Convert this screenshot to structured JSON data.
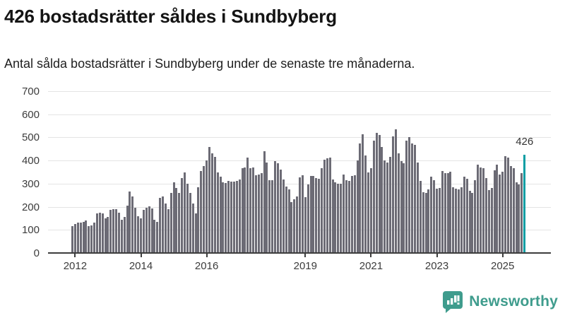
{
  "header": {
    "title": "426 bostadsrätter såldes i Sundbyberg",
    "subtitle": "Antal sålda bostadsrätter i Sundbyberg under de senaste tre månaderna."
  },
  "footer": {
    "brand": "Newsworthy"
  },
  "colors": {
    "bar": "#6c6b75",
    "highlight": "#089ea4",
    "grid": "#e4e4e4",
    "axis": "#3d3d3d",
    "logo": "#3f9c8d"
  },
  "chart_data": {
    "type": "bar",
    "title": "426 bostadsrätter såldes i Sundbyberg",
    "subtitle": "Antal sålda bostadsrätter i Sundbyberg under de senaste tre månaderna.",
    "ylabel": "",
    "xlabel": "",
    "ylim": [
      0,
      700
    ],
    "y_ticks": [
      0,
      100,
      200,
      300,
      400,
      500,
      600,
      700
    ],
    "grid": true,
    "legend": "none",
    "x_period": {
      "start": "2011-12",
      "end": "2025-09",
      "step": "month"
    },
    "x_ticks": [
      {
        "label": "2012",
        "index": 1
      },
      {
        "label": "2014",
        "index": 25
      },
      {
        "label": "2016",
        "index": 49
      },
      {
        "label": "2019",
        "index": 85
      },
      {
        "label": "2021",
        "index": 109
      },
      {
        "label": "2023",
        "index": 133
      },
      {
        "label": "2025",
        "index": 157
      }
    ],
    "values": [
      115,
      125,
      130,
      130,
      135,
      140,
      115,
      120,
      130,
      170,
      175,
      170,
      150,
      155,
      185,
      190,
      190,
      175,
      145,
      155,
      205,
      265,
      245,
      195,
      160,
      150,
      187,
      195,
      203,
      193,
      145,
      135,
      238,
      245,
      215,
      190,
      260,
      305,
      280,
      260,
      325,
      350,
      300,
      260,
      215,
      170,
      283,
      355,
      375,
      400,
      460,
      430,
      415,
      350,
      330,
      305,
      302,
      312,
      309,
      310,
      312,
      318,
      366,
      369,
      414,
      366,
      371,
      335,
      340,
      346,
      439,
      391,
      315,
      315,
      396,
      389,
      361,
      318,
      287,
      274,
      220,
      233,
      244,
      328,
      335,
      240,
      298,
      332,
      332,
      325,
      322,
      366,
      404,
      410,
      414,
      318,
      305,
      300,
      301,
      340,
      315,
      313,
      333,
      335,
      399,
      473,
      514,
      422,
      349,
      366,
      485,
      519,
      512,
      458,
      400,
      391,
      417,
      503,
      534,
      432,
      396,
      388,
      485,
      500,
      473,
      468,
      391,
      312,
      264,
      259,
      274,
      330,
      315,
      279,
      280,
      356,
      346,
      345,
      353,
      284,
      279,
      274,
      284,
      330,
      320,
      269,
      259,
      315,
      381,
      371,
      366,
      325,
      271,
      281,
      359,
      381,
      338,
      351,
      419,
      412,
      376,
      368,
      305,
      298,
      345,
      426
    ],
    "highlight": {
      "index": 165,
      "value": 426,
      "label": "426"
    }
  }
}
